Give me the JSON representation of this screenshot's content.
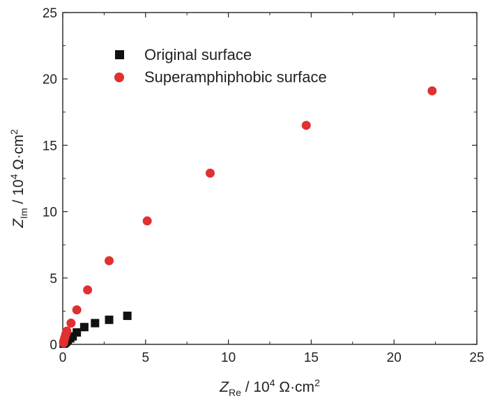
{
  "chart_data": {
    "type": "scatter",
    "xlim": [
      0,
      25
    ],
    "ylim": [
      0,
      25
    ],
    "xticks": [
      0,
      5,
      10,
      15,
      20,
      25
    ],
    "yticks": [
      0,
      5,
      10,
      15,
      20,
      25
    ],
    "xlabel": {
      "symbol": "Z",
      "subscript": "Re",
      "middle": " / 10",
      "power": "4",
      "unit": " Ω·cm",
      "unit_power": "2"
    },
    "ylabel": {
      "symbol": "Z",
      "subscript": "Im",
      "middle": " / 10",
      "power": "4",
      "unit": " Ω·cm",
      "unit_power": "2"
    },
    "legend_position": "top-left",
    "series": [
      {
        "name": "Original surface",
        "marker": "square",
        "color": "#111111",
        "x": [
          0.05,
          0.1,
          0.15,
          0.2,
          0.3,
          0.45,
          0.6,
          0.85,
          1.3,
          1.95,
          2.8,
          3.9
        ],
        "y": [
          0.05,
          0.1,
          0.15,
          0.2,
          0.3,
          0.45,
          0.6,
          0.9,
          1.3,
          1.6,
          1.85,
          2.15
        ]
      },
      {
        "name": "Superamphiphobic surface",
        "marker": "circle",
        "color": "#e03030",
        "x": [
          0.05,
          0.08,
          0.12,
          0.18,
          0.25,
          0.5,
          0.85,
          1.5,
          2.8,
          5.1,
          8.9,
          14.7,
          22.3
        ],
        "y": [
          0.1,
          0.3,
          0.5,
          0.75,
          1.0,
          1.6,
          2.6,
          4.1,
          6.3,
          9.3,
          12.9,
          16.5,
          19.1
        ]
      }
    ]
  }
}
